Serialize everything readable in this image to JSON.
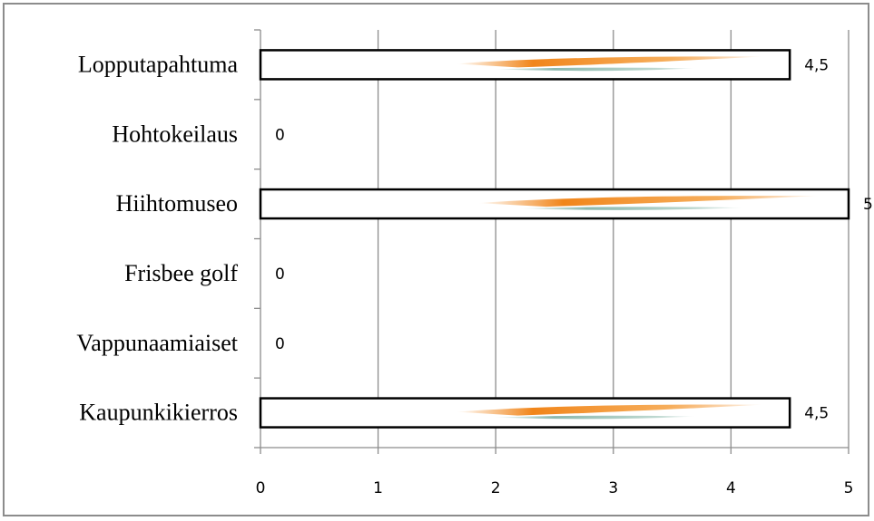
{
  "chart_data": {
    "type": "bar",
    "orientation": "horizontal",
    "categories": [
      "Lopputapahtuma",
      "Hohtokeilaus",
      "Hiihtomuseo",
      "Frisbee golf",
      "Vappunaamiaiset",
      "Kaupunkikierros"
    ],
    "values": [
      4.5,
      0,
      5,
      0,
      0,
      4.5
    ],
    "data_labels": [
      "4,5",
      "0",
      "5",
      "0",
      "0",
      "4,5"
    ],
    "xlim": [
      0,
      5
    ],
    "x_ticks": [
      0,
      1,
      2,
      3,
      4,
      5
    ],
    "x_tick_labels": [
      "0",
      "1",
      "2",
      "3",
      "4",
      "5"
    ],
    "grid": "vertical",
    "legend": "none",
    "colors": {
      "bar_fill": "#ffffff",
      "bar_stroke": "#000000",
      "grid": "#8c8c8c",
      "axis": "#8c8c8c",
      "accent_orange": "#f07f0e",
      "accent_teal": "#5a9a8a"
    }
  }
}
